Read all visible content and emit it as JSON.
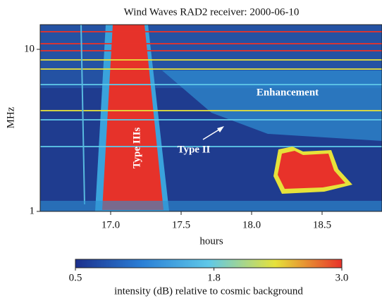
{
  "chart_data": {
    "type": "spectrogram",
    "title": "Wind Waves RAD2 receiver: 2000-06-10",
    "x_label": "hours",
    "y_label": "MHz",
    "xlim": [
      16.5,
      18.925
    ],
    "xticks": [
      {
        "value": 17,
        "label": "17.0"
      },
      17.5,
      {
        "value": 18,
        "label": "18.0"
      },
      18.5
    ],
    "ylim": [
      1,
      14.2
    ],
    "yticks": [
      1,
      10
    ],
    "y_log": true,
    "colorbar": {
      "label": "intensity (dB) relative to cosmic background",
      "lim": [
        0.5,
        3.0
      ],
      "ticks": [
        0.5,
        1.8,
        {
          "value": 3,
          "label": "3.0"
        }
      ],
      "colors": [
        "#1c2f8c",
        "#2a7fd6",
        "#5fc8e8",
        "#e6e23a",
        "#e8322a"
      ]
    },
    "annotations": [
      "Enhancement",
      "Type IIIs",
      "Type II"
    ]
  }
}
